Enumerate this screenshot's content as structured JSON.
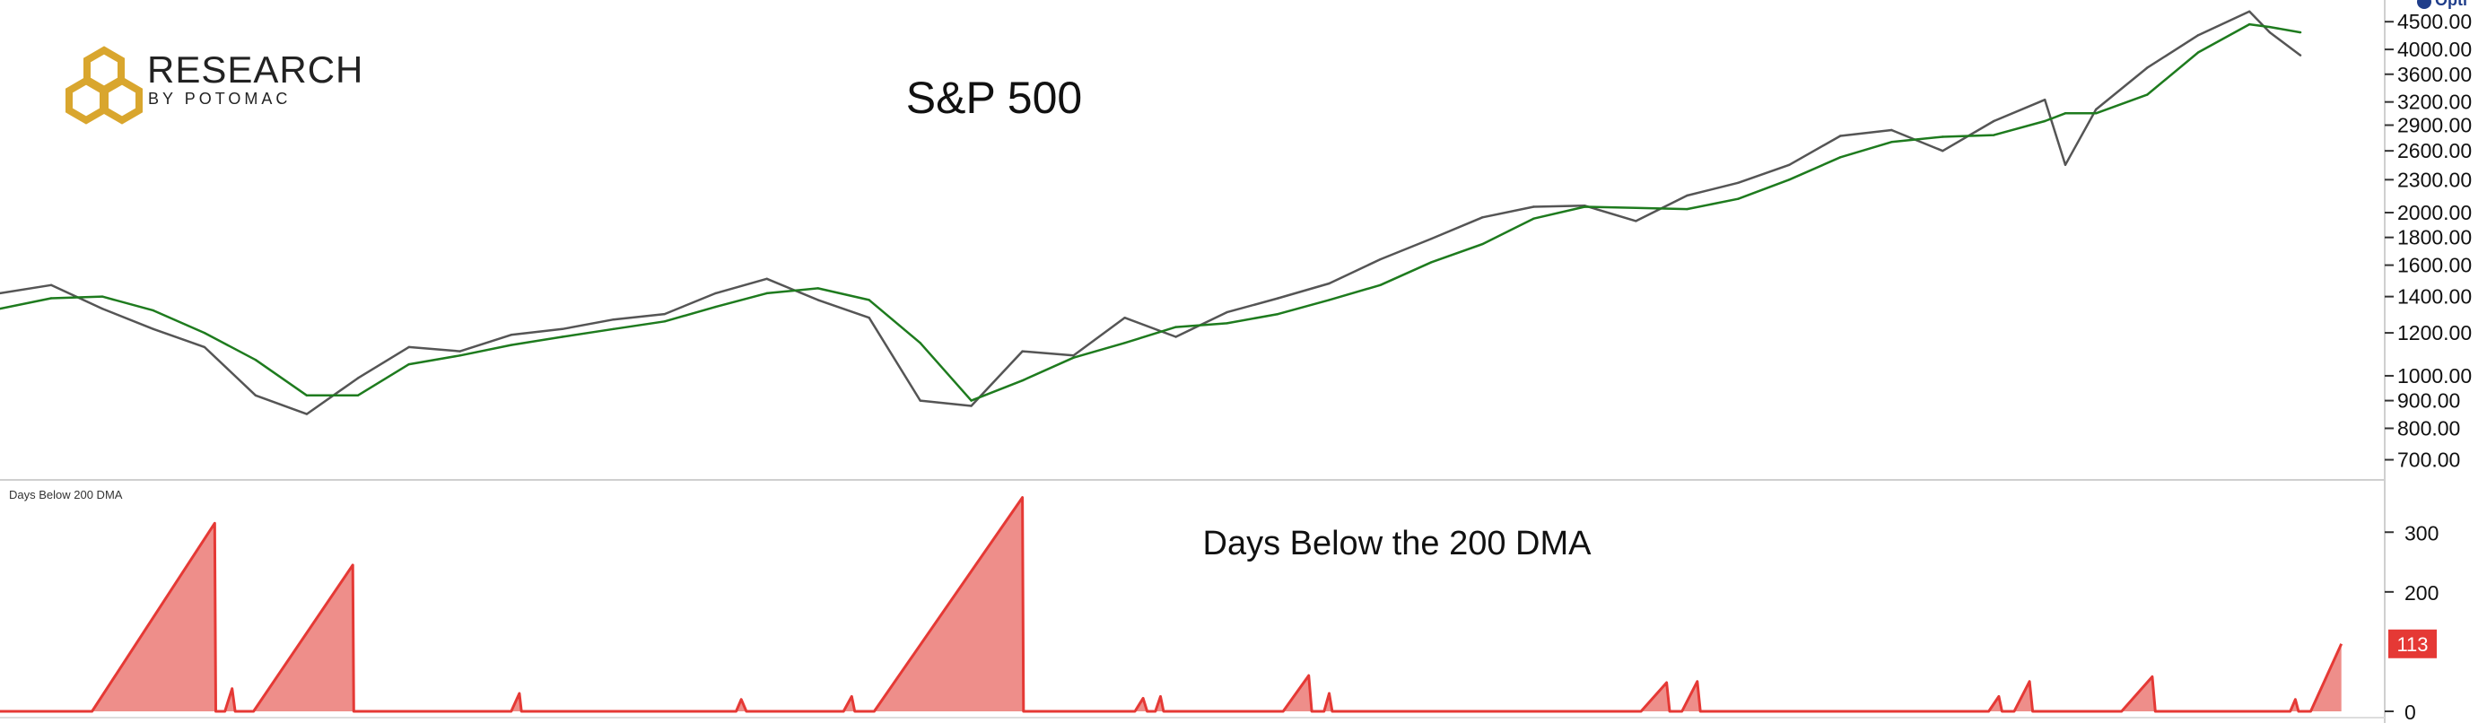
{
  "brand": {
    "logo_text": "RESEARCH",
    "logo_subtext": "BY POTOMAC",
    "logo_color": "#D9A62E",
    "corner_mark": "Opti"
  },
  "chart_data": [
    {
      "type": "line",
      "title": "S&P 500",
      "yscale": "log",
      "ylim": [
        650,
        4750
      ],
      "y_ticks": [
        "4500.00",
        "4000.00",
        "3600.00",
        "3200.00",
        "2900.00",
        "2600.00",
        "2300.00",
        "2000.00",
        "1800.00",
        "1600.00",
        "1400.00",
        "1200.00",
        "1000.00",
        "900.00",
        "800.00",
        "700.00"
      ],
      "y_tick_values": [
        4500,
        4000,
        3600,
        3200,
        2900,
        2600,
        2300,
        2000,
        1800,
        1600,
        1400,
        1200,
        1000,
        900,
        800,
        700
      ],
      "x": [
        2000.0,
        2000.5,
        2001.0,
        2001.5,
        2002.0,
        2002.5,
        2003.0,
        2003.5,
        2004.0,
        2004.5,
        2005.0,
        2005.5,
        2006.0,
        2006.5,
        2007.0,
        2007.5,
        2008.0,
        2008.5,
        2009.0,
        2009.5,
        2010.0,
        2010.5,
        2011.0,
        2011.5,
        2012.0,
        2012.5,
        2013.0,
        2013.5,
        2014.0,
        2014.5,
        2015.0,
        2015.5,
        2016.0,
        2016.5,
        2017.0,
        2017.5,
        2018.0,
        2018.5,
        2019.0,
        2019.5,
        2020.0,
        2020.2,
        2020.5,
        2021.0,
        2021.5,
        2022.0,
        2022.2,
        2022.5
      ],
      "series": [
        {
          "color": "#555555",
          "values": [
            1420,
            1470,
            1330,
            1220,
            1130,
            920,
            850,
            990,
            1130,
            1110,
            1190,
            1220,
            1270,
            1300,
            1420,
            1510,
            1380,
            1280,
            900,
            880,
            1110,
            1090,
            1280,
            1180,
            1310,
            1390,
            1480,
            1640,
            1790,
            1960,
            2050,
            2060,
            1930,
            2150,
            2270,
            2450,
            2770,
            2840,
            2600,
            2950,
            3230,
            2450,
            3100,
            3700,
            4250,
            4700,
            4300,
            3900
          ]
        },
        {
          "color": "#1E7B1E",
          "values": [
            1330,
            1390,
            1400,
            1320,
            1200,
            1070,
            920,
            920,
            1050,
            1090,
            1140,
            1180,
            1220,
            1260,
            1340,
            1420,
            1450,
            1380,
            1150,
            900,
            980,
            1080,
            1150,
            1230,
            1250,
            1300,
            1380,
            1470,
            1620,
            1750,
            1950,
            2050,
            2040,
            2030,
            2120,
            2300,
            2530,
            2700,
            2760,
            2780,
            2950,
            3050,
            3050,
            3300,
            3950,
            4450,
            4400,
            4300
          ]
        }
      ]
    },
    {
      "type": "area",
      "title": "Days Below the 200 DMA",
      "panel_label": "Days Below 200 DMA",
      "ylim": [
        0,
        380
      ],
      "y_ticks": [
        "300",
        "200",
        "0"
      ],
      "y_tick_values": [
        300,
        200,
        0
      ],
      "last_value_label": "113",
      "last_value": 113,
      "series": [
        {
          "color": "#E53935",
          "fill": "#EE8E8A",
          "points": [
            [
              2000.0,
              0
            ],
            [
              2000.9,
              0
            ],
            [
              2002.1,
              315
            ],
            [
              2002.11,
              0
            ],
            [
              2002.2,
              0
            ],
            [
              2002.27,
              38
            ],
            [
              2002.3,
              0
            ],
            [
              2002.48,
              0
            ],
            [
              2003.45,
              245
            ],
            [
              2003.46,
              0
            ],
            [
              2005.0,
              0
            ],
            [
              2005.08,
              30
            ],
            [
              2005.1,
              0
            ],
            [
              2007.2,
              0
            ],
            [
              2007.25,
              20
            ],
            [
              2007.3,
              0
            ],
            [
              2008.25,
              0
            ],
            [
              2008.33,
              25
            ],
            [
              2008.36,
              0
            ],
            [
              2008.55,
              0
            ],
            [
              2010.0,
              358
            ],
            [
              2010.01,
              0
            ],
            [
              2011.1,
              0
            ],
            [
              2011.18,
              22
            ],
            [
              2011.22,
              0
            ],
            [
              2011.3,
              0
            ],
            [
              2011.35,
              25
            ],
            [
              2011.38,
              0
            ],
            [
              2012.55,
              0
            ],
            [
              2012.8,
              60
            ],
            [
              2012.83,
              0
            ],
            [
              2012.95,
              0
            ],
            [
              2013.0,
              30
            ],
            [
              2013.03,
              0
            ],
            [
              2016.05,
              0
            ],
            [
              2016.3,
              48
            ],
            [
              2016.33,
              0
            ],
            [
              2016.45,
              0
            ],
            [
              2016.6,
              50
            ],
            [
              2016.63,
              0
            ],
            [
              2019.45,
              0
            ],
            [
              2019.55,
              25
            ],
            [
              2019.58,
              0
            ],
            [
              2019.7,
              0
            ],
            [
              2019.85,
              50
            ],
            [
              2019.88,
              0
            ],
            [
              2020.75,
              0
            ],
            [
              2021.05,
              58
            ],
            [
              2021.08,
              0
            ],
            [
              2022.4,
              0
            ],
            [
              2022.45,
              20
            ],
            [
              2022.48,
              0
            ],
            [
              2022.6,
              0
            ],
            [
              2022.9,
              113
            ]
          ]
        }
      ]
    }
  ]
}
